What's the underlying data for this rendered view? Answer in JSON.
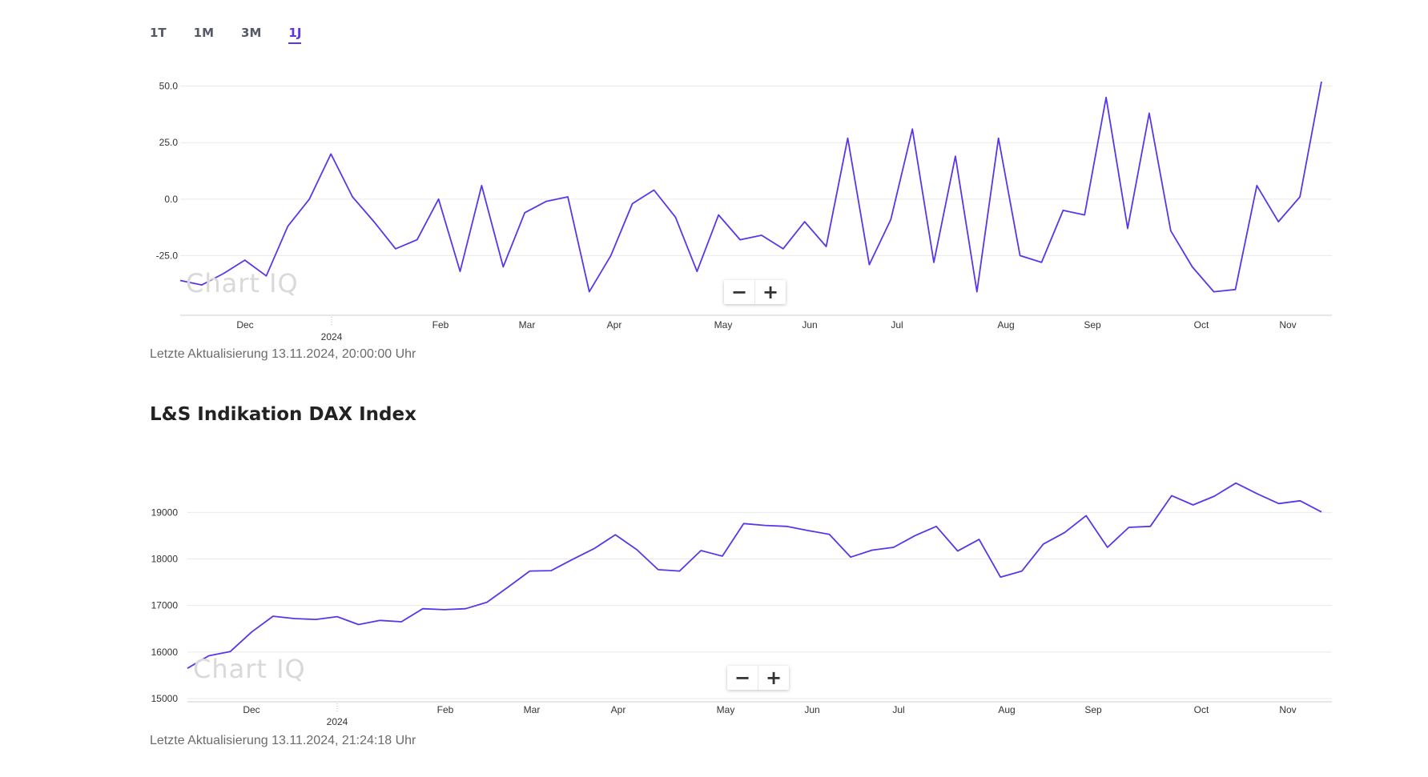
{
  "tabs": [
    {
      "label": "1T",
      "active": false
    },
    {
      "label": "1M",
      "active": false
    },
    {
      "label": "3M",
      "active": false
    },
    {
      "label": "1J",
      "active": true
    }
  ],
  "logo_text": "Chart IQ",
  "zoom": {
    "minus": "−",
    "plus": "+"
  },
  "update1": "Letzte Aktualisierung 13.11.2024, 20:00:00 Uhr",
  "update2": "Letzte Aktualisierung 13.11.2024, 21:24:18 Uhr",
  "section_title": "L&S Indikation DAX Index",
  "colors": {
    "line": "#5b35e8",
    "grid": "#e9e9e9",
    "axis": "#cccccc",
    "tick_text": "#333333"
  },
  "chart_data": [
    {
      "type": "line",
      "title": "",
      "x_ticks": [
        "Dec",
        "2024",
        "Feb",
        "Mar",
        "Apr",
        "May",
        "Jun",
        "Jul",
        "Aug",
        "Sep",
        "Oct",
        "Nov"
      ],
      "y_ticks": [
        "50.0",
        "25.0",
        "0.0",
        "-25.0"
      ],
      "ylim": [
        -50,
        52
      ],
      "grid": true,
      "series": [
        {
          "values": [
            -36,
            -38,
            -33,
            -27,
            -34,
            -12,
            0,
            20,
            1,
            -10,
            -22,
            -18,
            0,
            -32,
            6,
            -30,
            -6,
            -1,
            1,
            -41,
            -25,
            -2,
            4,
            -8,
            -32,
            -7,
            -18,
            -16,
            -22,
            -10,
            -21,
            27,
            -29,
            -9,
            31,
            -28,
            19,
            -41,
            27,
            -25,
            -28,
            -5,
            -7,
            45,
            -13,
            38,
            -14,
            -30,
            -41,
            -40,
            6,
            -10,
            1,
            52
          ]
        }
      ]
    },
    {
      "type": "line",
      "title": "L&S Indikation DAX Index",
      "x_ticks": [
        "Dec",
        "2024",
        "Feb",
        "Mar",
        "Apr",
        "May",
        "Jun",
        "Jul",
        "Aug",
        "Sep",
        "Oct",
        "Nov"
      ],
      "y_ticks": [
        "19000",
        "18000",
        "17000",
        "16000",
        "15000"
      ],
      "ylim": [
        15000,
        19900
      ],
      "grid": true,
      "series": [
        {
          "values": [
            15650,
            15920,
            16010,
            16430,
            16770,
            16720,
            16700,
            16760,
            16590,
            16680,
            16650,
            16930,
            16910,
            16930,
            17070,
            17400,
            17740,
            17750,
            17990,
            18220,
            18520,
            18200,
            17770,
            17740,
            18180,
            18060,
            18760,
            18720,
            18700,
            18610,
            18530,
            18040,
            18190,
            18250,
            18500,
            18700,
            18170,
            18420,
            17610,
            17740,
            18320,
            18570,
            18930,
            18250,
            18680,
            18700,
            19360,
            19160,
            19350,
            19630,
            19400,
            19190,
            19250,
            19010
          ]
        }
      ]
    }
  ]
}
